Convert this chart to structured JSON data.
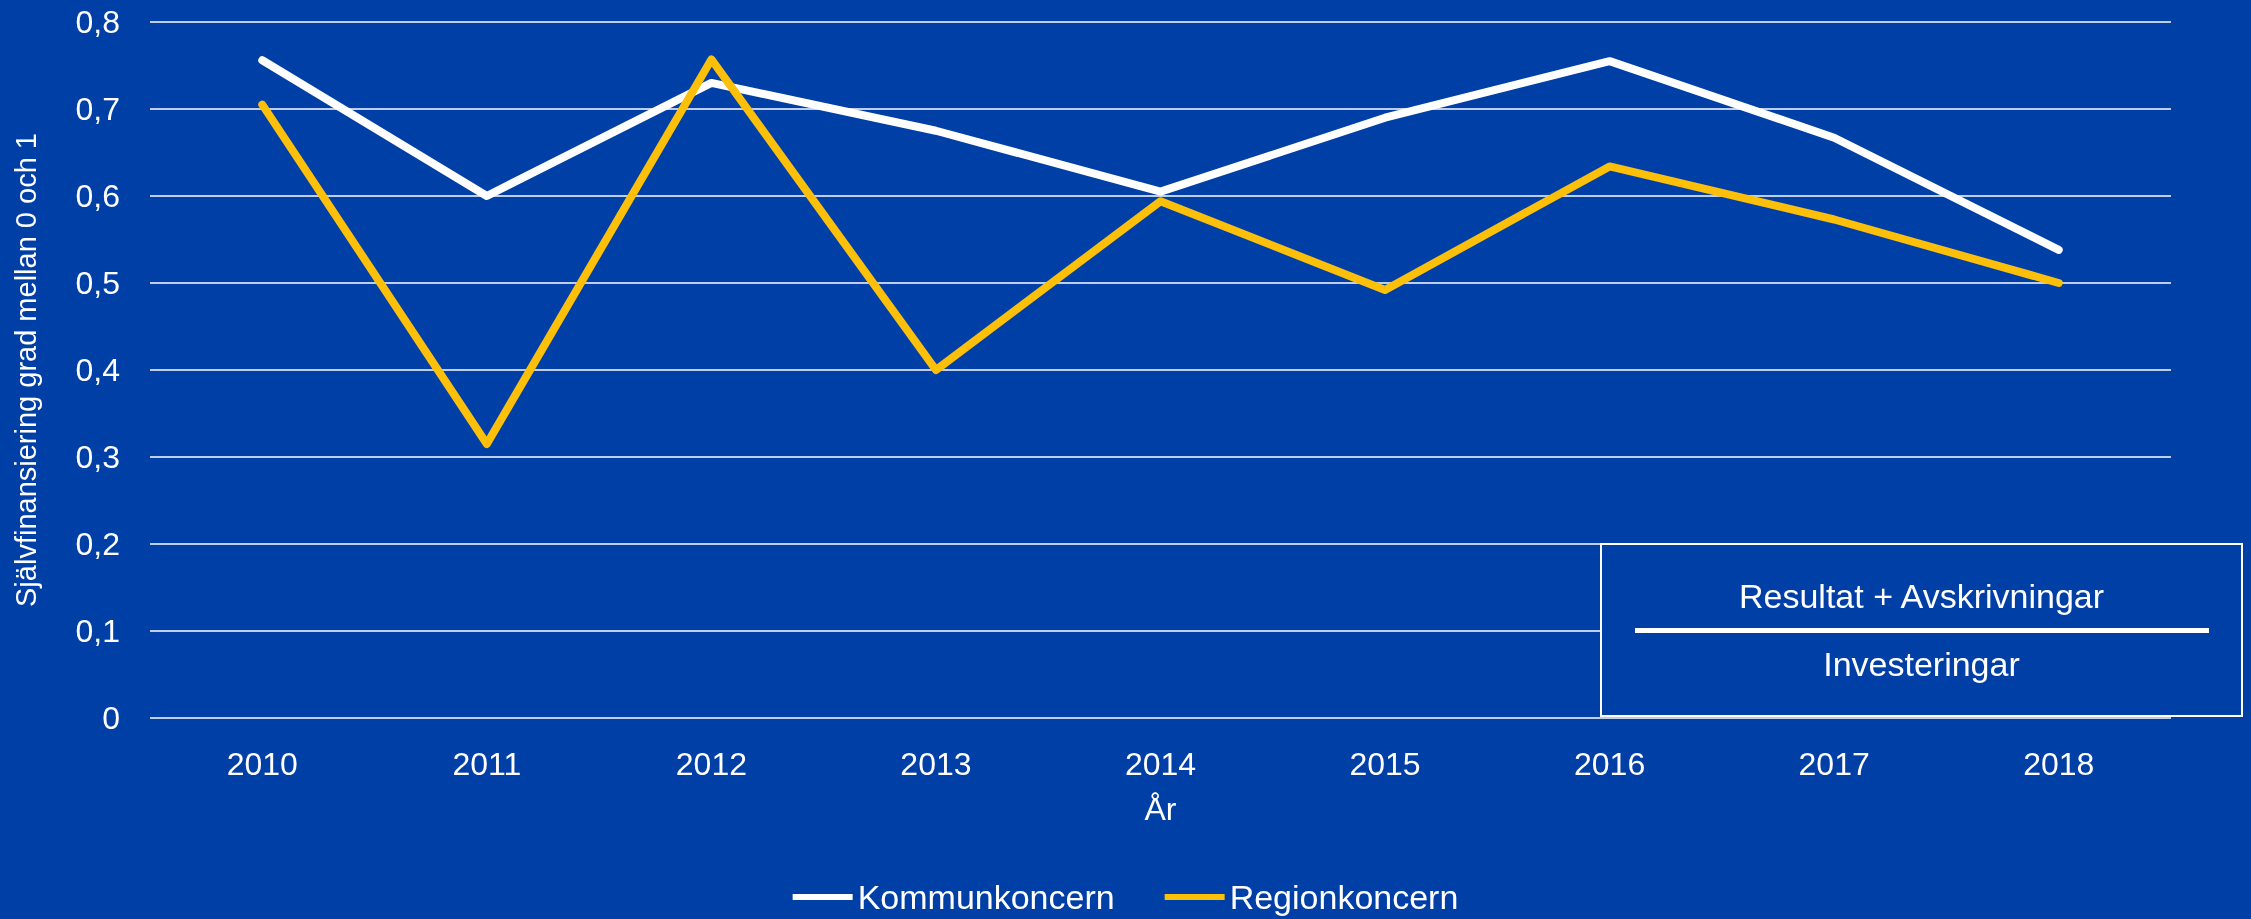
{
  "chart_data": {
    "type": "line",
    "xlabel": "År",
    "ylabel": "Självfinansiering grad mellan 0 och 1",
    "categories": [
      "2010",
      "2011",
      "2012",
      "2013",
      "2014",
      "2015",
      "2016",
      "2017",
      "2018"
    ],
    "series": [
      {
        "name": "Kommunkoncern",
        "color": "#ffffff",
        "values": [
          0.756,
          0.6,
          0.73,
          0.675,
          0.605,
          0.69,
          0.755,
          0.667,
          0.538
        ]
      },
      {
        "name": "Regionkoncern",
        "color": "#fcbf0a",
        "values": [
          0.705,
          0.315,
          0.757,
          0.4,
          0.594,
          0.492,
          0.634,
          0.573,
          0.5
        ]
      }
    ],
    "ylim": [
      0,
      0.8
    ],
    "yticks": [
      0,
      {
        "value": 0.1,
        "label": "0,1"
      },
      {
        "value": 0.2,
        "label": "0,2"
      },
      {
        "value": 0.3,
        "label": "0,3"
      },
      {
        "value": 0.4,
        "label": "0,4"
      },
      {
        "value": 0.5,
        "label": "0,5"
      },
      {
        "value": 0.6,
        "label": "0,6"
      },
      {
        "value": 0.7,
        "label": "0,7"
      },
      {
        "value": 0.8,
        "label": "0,8"
      }
    ],
    "grid": "y",
    "legend": "bottom",
    "marker": "none",
    "line_style": "solid",
    "annotations": [
      "Resultat + Avskrivningar",
      "Investeringar"
    ]
  }
}
